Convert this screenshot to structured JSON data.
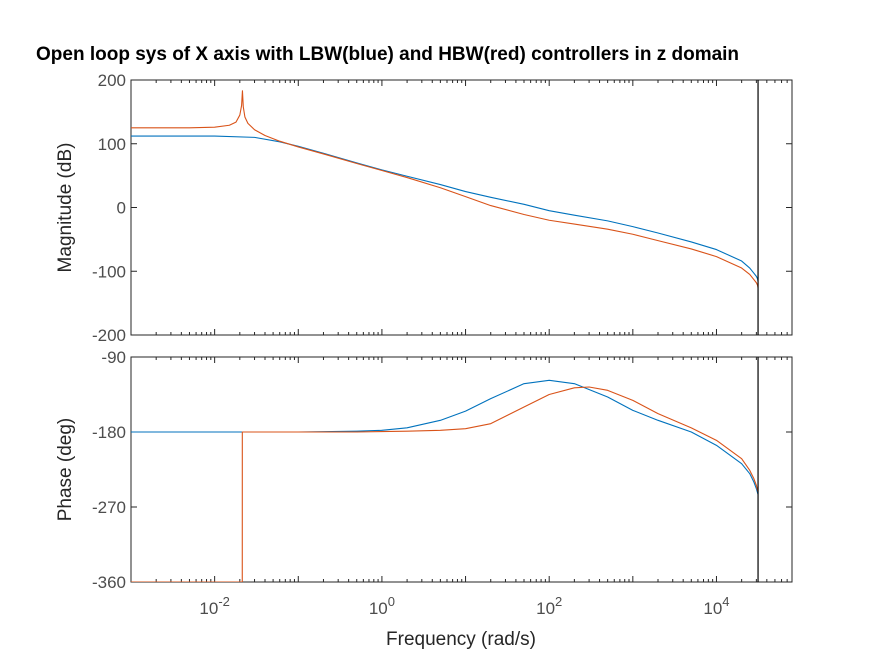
{
  "chart_data": {
    "type": "line",
    "title": "Open loop sys of X axis with LBW(blue) and HBW(red) controllers in z domain",
    "xlabel": "Frequency  (rad/s)",
    "xscale": "log",
    "xlim": [
      0.001,
      80000
    ],
    "x_ticks": [
      {
        "value": 0.01,
        "base": "10",
        "exp": "-2"
      },
      {
        "value": 1,
        "base": "10",
        "exp": "0"
      },
      {
        "value": 100,
        "base": "10",
        "exp": "2"
      },
      {
        "value": 10000,
        "base": "10",
        "exp": "4"
      }
    ],
    "nyquist_frequency": 31416,
    "colors": {
      "lbw": "#0072BD",
      "hbw": "#D95319",
      "nyquist": "#000000"
    },
    "panels": [
      {
        "id": "magnitude",
        "ylabel": "Magnitude (dB)",
        "ylim": [
          -200,
          200
        ],
        "yticks": [
          200,
          100,
          0,
          -100,
          -200
        ],
        "series": [
          {
            "key": "lbw",
            "x": [
              0.001,
              0.01,
              0.03,
              0.06,
              0.1,
              0.2,
              0.5,
              1,
              2,
              5,
              10,
              20,
              50,
              100,
              200,
              500,
              1000,
              2000,
              5000,
              10000,
              20000,
              25000,
              28000,
              30000,
              31000,
              31400
            ],
            "y": [
              112,
              112,
              110,
              103,
              96,
              85,
              70,
              59,
              49,
              36,
              25,
              16,
              5,
              -5,
              -12,
              -21,
              -30,
              -40,
              -54,
              -66,
              -84,
              -95,
              -103,
              -108,
              -112,
              -116
            ]
          },
          {
            "key": "hbw",
            "x": [
              0.001,
              0.005,
              0.01,
              0.015,
              0.018,
              0.02,
              0.021,
              0.0215,
              0.022,
              0.023,
              0.025,
              0.03,
              0.04,
              0.06,
              0.1,
              0.2,
              0.5,
              1,
              2,
              5,
              10,
              20,
              50,
              100,
              200,
              500,
              1000,
              2000,
              5000,
              10000,
              20000,
              25000,
              28000,
              30000,
              31000,
              31400
            ],
            "y": [
              125,
              125,
              126,
              129,
              134,
              145,
              160,
              183,
              158,
              142,
              132,
              122,
              113,
              104,
              95,
              84,
              69,
              58,
              47,
              31,
              17,
              3,
              -11,
              -20,
              -26,
              -34,
              -42,
              -52,
              -65,
              -77,
              -95,
              -105,
              -113,
              -118,
              -122,
              -126
            ]
          }
        ]
      },
      {
        "id": "phase",
        "ylabel": "Phase (deg)",
        "ylim": [
          -360,
          -90
        ],
        "yticks": [
          -90,
          -180,
          -270,
          -360
        ],
        "series": [
          {
            "key": "lbw",
            "x": [
              0.001,
              0.01,
              0.1,
              0.5,
              1,
              2,
              5,
              10,
              20,
              50,
              100,
              200,
              500,
              1000,
              2000,
              5000,
              10000,
              20000,
              25000,
              28000,
              30000,
              31000,
              31400
            ],
            "y": [
              -180,
              -180,
              -180,
              -179,
              -178,
              -175,
              -166,
              -155,
              -140,
              -122,
              -118,
              -122,
              -138,
              -154,
              -166,
              -180,
              -196,
              -218,
              -230,
              -240,
              -248,
              -253,
              -255
            ]
          },
          {
            "key": "hbw",
            "x": [
              0.001,
              0.0214,
              0.02142,
              0.022,
              0.05,
              0.1,
              0.5,
              1,
              2,
              5,
              10,
              20,
              50,
              100,
              200,
              300,
              500,
              1000,
              2000,
              5000,
              10000,
              20000,
              25000,
              28000,
              30000,
              31000,
              31400
            ],
            "y": [
              -360,
              -360,
              -180,
              -180,
              -180,
              -180,
              -180,
              -179.5,
              -179,
              -178,
              -176,
              -170,
              -150,
              -135,
              -127,
              -126,
              -130,
              -142,
              -158,
              -175,
              -190,
              -212,
              -226,
              -236,
              -244,
              -250,
              -252
            ]
          }
        ]
      }
    ]
  }
}
